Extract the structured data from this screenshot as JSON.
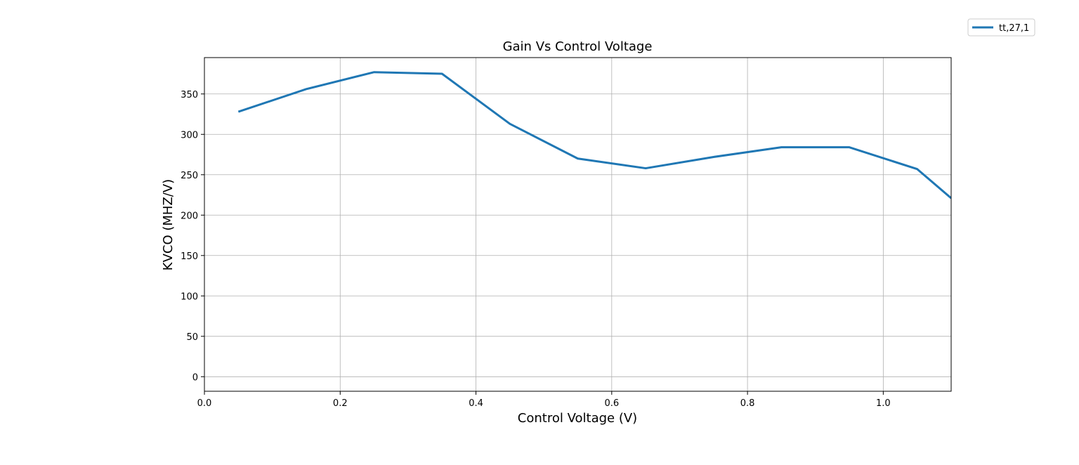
{
  "chart_data": {
    "type": "line",
    "title": "Gain  Vs Control Voltage",
    "xlabel": "Control Voltage (V)",
    "ylabel": "KVCO (MHZ/V)",
    "xlim": [
      0.0,
      1.1
    ],
    "ylim": [
      -18,
      395
    ],
    "xticks": [
      0.0,
      0.2,
      0.4,
      0.6,
      0.8,
      1.0
    ],
    "xtick_labels": [
      "0.0",
      "0.2",
      "0.4",
      "0.6",
      "0.8",
      "1.0"
    ],
    "yticks": [
      0,
      50,
      100,
      150,
      200,
      250,
      300,
      350
    ],
    "ytick_labels": [
      "0",
      "50",
      "100",
      "150",
      "200",
      "250",
      "300",
      "350"
    ],
    "grid": true,
    "legend_position": "top-right, outside",
    "series": [
      {
        "name": "tt,27,1",
        "color": "#1f77b4",
        "x": [
          0.05,
          0.15,
          0.25,
          0.35,
          0.45,
          0.55,
          0.65,
          0.75,
          0.85,
          0.95,
          1.05,
          1.1
        ],
        "values": [
          328,
          356,
          377,
          375,
          313,
          270,
          258,
          272,
          284,
          284,
          257,
          221
        ]
      }
    ]
  }
}
